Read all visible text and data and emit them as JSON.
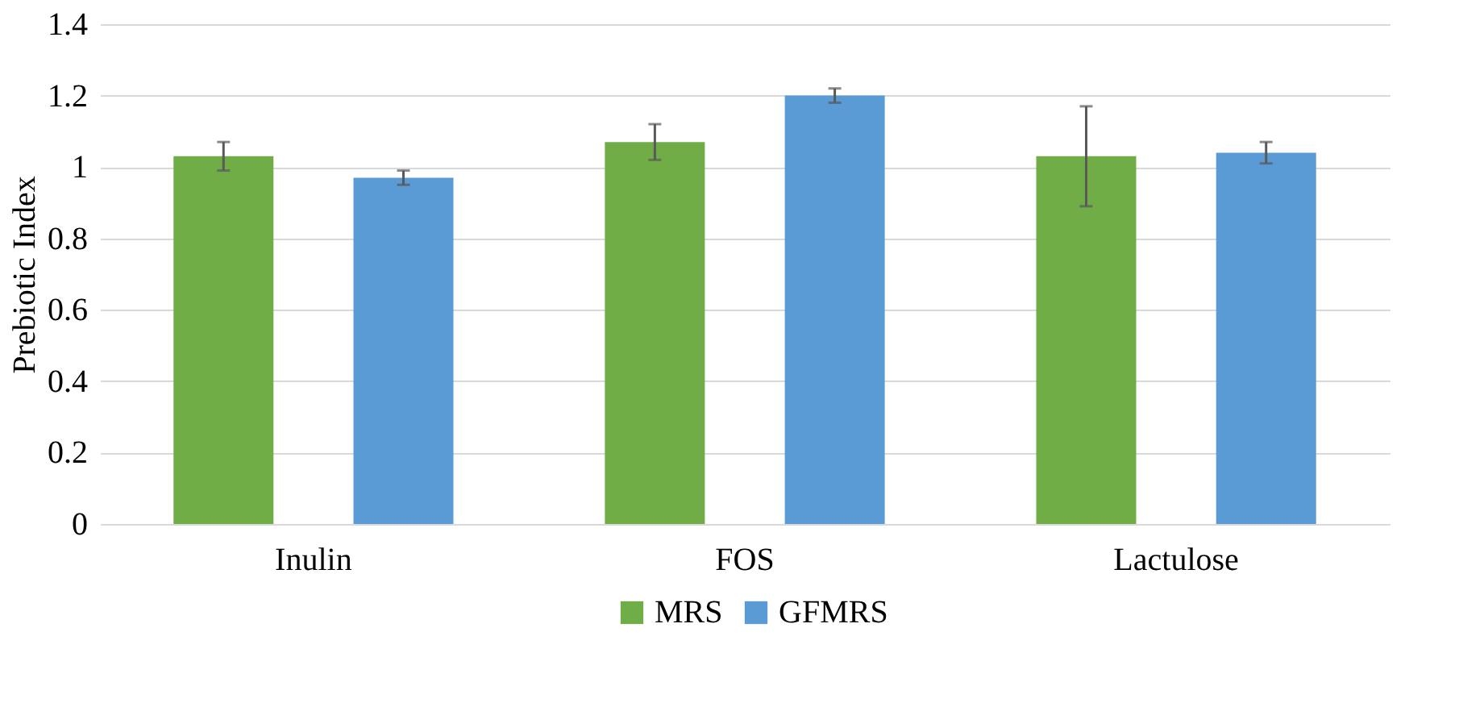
{
  "chart_data": {
    "type": "bar",
    "ylabel": "Prebiotic Index",
    "categories": [
      "Inulin",
      "FOS",
      "Lactulose"
    ],
    "series": [
      {
        "name": "MRS",
        "color": "#70ad47",
        "values": [
          1.03,
          1.07,
          1.03
        ],
        "errors": [
          0.04,
          0.05,
          0.14
        ]
      },
      {
        "name": "GFMRS",
        "color": "#5b9bd5",
        "values": [
          0.97,
          1.2,
          1.04
        ],
        "errors": [
          0.02,
          0.02,
          0.03
        ]
      }
    ],
    "ylim": [
      0,
      1.4
    ],
    "yticks": [
      0,
      0.2,
      0.4,
      0.6,
      0.8,
      1,
      1.2,
      1.4
    ],
    "grid": "y",
    "legend": "bottom"
  }
}
